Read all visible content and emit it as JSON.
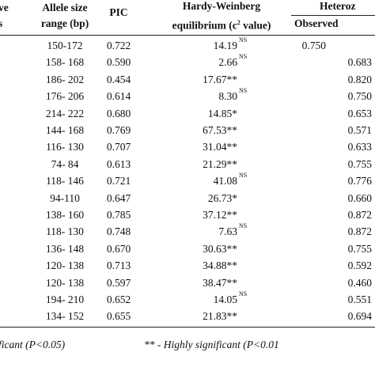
{
  "header": {
    "col0": [
      "ve",
      "s"
    ],
    "range": [
      "Allele size",
      "range (bp)"
    ],
    "pic": "PIC",
    "hw": {
      "line1": "Hardy-Weinberg",
      "line2a": "equilibrium (c",
      "sup": "2",
      "line2b": " value)"
    },
    "het": "Heteroz",
    "observed": "Observed"
  },
  "rows": [
    {
      "range": "150-172",
      "pic": "0.722",
      "hw": "14.19",
      "hw_sup": "NS",
      "obs": "0.750"
    },
    {
      "range": "158- 168",
      "pic": "0.590",
      "hw": "2.66",
      "hw_sup": "NS",
      "obs": "0.683"
    },
    {
      "range": "186- 202",
      "pic": "0.454",
      "hw": "17.67**",
      "obs": "0.820"
    },
    {
      "range": "176- 206",
      "pic": "0.614",
      "hw": "8.30",
      "hw_sup": "NS",
      "obs": "0.750"
    },
    {
      "range": "214- 222",
      "pic": "0.680",
      "hw": "14.85*",
      "obs": "0.653"
    },
    {
      "range": "144- 168",
      "pic": "0.769",
      "hw": "67.53**",
      "obs": "0.571"
    },
    {
      "range": "116- 130",
      "pic": "0.707",
      "hw": "31.04**",
      "obs": "0.633"
    },
    {
      "range": "74- 84",
      "pic": "0.613",
      "hw": "21.29**",
      "obs": "0.755"
    },
    {
      "range": "118- 146",
      "pic": "0.721",
      "hw": "41.08",
      "hw_sup": "NS",
      "obs": "0.776"
    },
    {
      "range": "94-110",
      "pic": "0.647",
      "hw": "26.73*",
      "obs": "0.660"
    },
    {
      "range": "138- 160",
      "pic": "0.785",
      "hw": "37.12**",
      "obs": "0.872"
    },
    {
      "range": "118- 130",
      "pic": "0.748",
      "hw": "7.63",
      "hw_sup": "NS",
      "obs": "0.872"
    },
    {
      "range": "136- 148",
      "pic": "0.670",
      "hw": "30.63**",
      "obs": "0.755"
    },
    {
      "range": "120- 138",
      "pic": "0.713",
      "hw": "34.88**",
      "obs": "0.592"
    },
    {
      "range": "120- 138",
      "pic": "0.597",
      "hw": "38.47**",
      "obs": "0.460"
    },
    {
      "range": "194- 210",
      "pic": "0.652",
      "hw": "14.05",
      "hw_sup": "NS",
      "obs": "0.551"
    },
    {
      "range": "134- 152",
      "pic": "0.655",
      "hw": "21.83**",
      "obs": "0.694"
    }
  ],
  "footer": {
    "left": "ficant (P<0.05)",
    "right": "** - Highly significant (P<0.01"
  }
}
